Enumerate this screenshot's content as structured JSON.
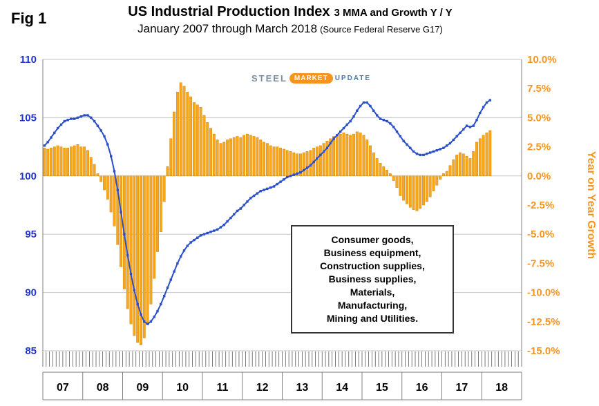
{
  "fig_label": "Fig 1",
  "title": {
    "main": "US Industrial Production Index",
    "main_suffix": "3 MMA and Growth Y / Y",
    "subtitle": "January 2007 through March 2018",
    "subtitle_suffix": "(Source Federal Reserve G17)"
  },
  "logo": {
    "steel": "STEEL",
    "market": "MARKET",
    "update": "UPDATE"
  },
  "annotation": {
    "lines": [
      "Consumer goods,",
      "Business equipment,",
      "Construction supplies,",
      "Business supplies,",
      "Materials,",
      "Manufacturing,",
      "Mining and Utilities."
    ]
  },
  "colors": {
    "line": "#2a4fc8",
    "bar": "#faa61b",
    "bar_border": "#c77f00",
    "left_axis": "#2233cc",
    "right_axis": "#f7941d",
    "grid": "#c6c6c6",
    "axis_line": "#808080",
    "comb": "#595959",
    "text": "#000000"
  },
  "chart_data": {
    "type": "line+bar",
    "title": "US Industrial Production Index 3 MMA and Growth Y / Y",
    "period": "January 2007 through March 2018",
    "source": "Federal Reserve G17",
    "x_months_span": "Jan 2007 to Mar 2018 (axis drawn through Dec 2018)",
    "year_labels": [
      "07",
      "08",
      "09",
      "10",
      "11",
      "12",
      "13",
      "14",
      "15",
      "16",
      "17",
      "18"
    ],
    "left_axis": {
      "min": 85,
      "max": 110,
      "tick_values": [
        110,
        105,
        100,
        95,
        90,
        85
      ]
    },
    "right_axis": {
      "min": -15,
      "max": 10,
      "title": "Year on Year Growth",
      "tick_values": [
        10,
        7.5,
        5,
        2.5,
        0,
        -2.5,
        -5,
        -7.5,
        -10,
        -12.5,
        -15
      ],
      "tick_labels": [
        "10.0%",
        "7.5%",
        "5.0%",
        "2.5%",
        "0.0%",
        "-2.5%",
        "-5.0%",
        "-7.5%",
        "-10.0%",
        "-12.5%",
        "-15.0%"
      ]
    },
    "series": [
      {
        "name": "Industrial Production Index 3 MMA",
        "type": "line",
        "values": [
          102.6,
          102.9,
          103.3,
          103.7,
          104.1,
          104.4,
          104.7,
          104.8,
          104.9,
          104.9,
          105.0,
          105.1,
          105.2,
          105.2,
          105.0,
          104.7,
          104.3,
          103.9,
          103.4,
          102.7,
          101.7,
          100.4,
          98.8,
          96.9,
          95.0,
          93.2,
          91.6,
          90.2,
          89.0,
          88.1,
          87.5,
          87.3,
          87.5,
          87.9,
          88.4,
          89.0,
          89.7,
          90.4,
          91.1,
          91.8,
          92.5,
          93.1,
          93.6,
          94.0,
          94.3,
          94.5,
          94.7,
          94.9,
          95.0,
          95.1,
          95.2,
          95.3,
          95.4,
          95.6,
          95.8,
          96.1,
          96.4,
          96.7,
          97.0,
          97.2,
          97.5,
          97.8,
          98.1,
          98.3,
          98.5,
          98.7,
          98.8,
          98.9,
          99.0,
          99.1,
          99.3,
          99.5,
          99.7,
          99.9,
          100.0,
          100.1,
          100.2,
          100.3,
          100.5,
          100.7,
          100.9,
          101.2,
          101.5,
          101.8,
          102.1,
          102.4,
          102.8,
          103.2,
          103.5,
          103.8,
          104.1,
          104.4,
          104.7,
          105.1,
          105.6,
          106.0,
          106.3,
          106.3,
          106.0,
          105.6,
          105.2,
          104.9,
          104.8,
          104.7,
          104.5,
          104.2,
          103.8,
          103.4,
          103.0,
          102.7,
          102.4,
          102.1,
          101.9,
          101.8,
          101.8,
          101.9,
          102.0,
          102.1,
          102.2,
          102.3,
          102.4,
          102.6,
          102.8,
          103.1,
          103.4,
          103.7,
          104.0,
          104.3,
          104.2,
          104.3,
          104.8,
          105.4,
          105.9,
          106.3,
          106.5
        ]
      },
      {
        "name": "Growth Y/Y %",
        "type": "bar",
        "values": [
          2.4,
          2.3,
          2.4,
          2.5,
          2.6,
          2.5,
          2.4,
          2.4,
          2.5,
          2.6,
          2.7,
          2.5,
          2.5,
          2.2,
          1.6,
          1.0,
          0.2,
          -0.5,
          -1.2,
          -2.0,
          -3.1,
          -4.3,
          -5.9,
          -7.8,
          -9.7,
          -11.4,
          -12.7,
          -13.7,
          -14.3,
          -14.5,
          -13.9,
          -12.8,
          -11.0,
          -8.8,
          -6.5,
          -4.8,
          -2.2,
          0.8,
          3.2,
          5.5,
          7.2,
          8.0,
          7.7,
          7.2,
          6.8,
          6.3,
          6.1,
          5.9,
          5.2,
          4.6,
          4.1,
          3.6,
          3.1,
          2.8,
          2.9,
          3.1,
          3.2,
          3.3,
          3.4,
          3.3,
          3.5,
          3.6,
          3.5,
          3.4,
          3.3,
          3.1,
          2.9,
          2.8,
          2.6,
          2.5,
          2.5,
          2.4,
          2.3,
          2.2,
          2.1,
          2.0,
          1.9,
          1.9,
          2.0,
          2.1,
          2.2,
          2.4,
          2.5,
          2.6,
          2.8,
          3.0,
          3.2,
          3.4,
          3.5,
          3.6,
          3.7,
          3.6,
          3.5,
          3.6,
          3.8,
          3.7,
          3.5,
          3.1,
          2.6,
          2.0,
          1.5,
          1.1,
          0.8,
          0.5,
          0.2,
          -0.4,
          -1.0,
          -1.7,
          -2.1,
          -2.4,
          -2.7,
          -2.9,
          -3.0,
          -2.8,
          -2.5,
          -2.2,
          -1.8,
          -1.3,
          -0.8,
          -0.3,
          0.2,
          0.4,
          0.9,
          1.4,
          1.8,
          2.0,
          1.9,
          1.7,
          1.5,
          2.1,
          2.9,
          3.2,
          3.5,
          3.7,
          3.9
        ]
      }
    ]
  }
}
